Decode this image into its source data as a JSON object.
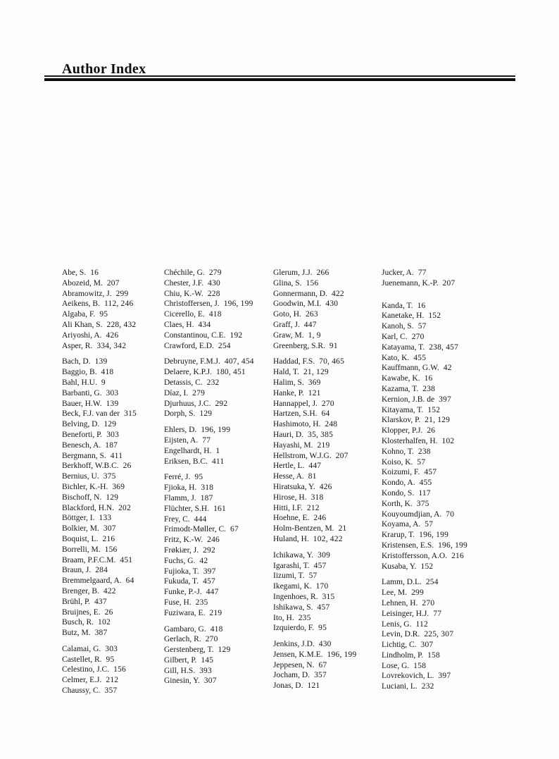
{
  "page": {
    "title": "Author Index"
  },
  "index": {
    "columns": [
      {
        "groups": [
          {
            "entries": [
              {
                "name": "Abe, S.",
                "pages": "16"
              },
              {
                "name": "Abozeid, M.",
                "pages": "207"
              },
              {
                "name": "Abramowitz, J.",
                "pages": "299"
              },
              {
                "name": "Aeikens, B.",
                "pages": "112, 246"
              },
              {
                "name": "Algaba, F.",
                "pages": "95"
              },
              {
                "name": "Ali Khan, S.",
                "pages": "228, 432"
              },
              {
                "name": "Ariyoshi, A.",
                "pages": "426"
              },
              {
                "name": "Asper, R.",
                "pages": "334, 342"
              }
            ]
          },
          {
            "entries": [
              {
                "name": "Bach, D.",
                "pages": "139"
              },
              {
                "name": "Baggio, B.",
                "pages": "418"
              },
              {
                "name": "Bahl, H.U.",
                "pages": "9"
              },
              {
                "name": "Barbanti, G.",
                "pages": "303"
              },
              {
                "name": "Bauer, H.W.",
                "pages": "139"
              },
              {
                "name": "Beck, F.J. van der",
                "pages": "315"
              },
              {
                "name": "Belving, D.",
                "pages": "129"
              },
              {
                "name": "Beneforti, P.",
                "pages": "303"
              },
              {
                "name": "Benesch, A.",
                "pages": "187"
              },
              {
                "name": "Bergmann, S.",
                "pages": "411"
              },
              {
                "name": "Berkhoff, W.B.C.",
                "pages": "26"
              },
              {
                "name": "Bernius, U.",
                "pages": "375"
              },
              {
                "name": "Bichler, K.-H.",
                "pages": "369"
              },
              {
                "name": "Bischoff, N.",
                "pages": "129"
              },
              {
                "name": "Blackford, H.N.",
                "pages": "202"
              },
              {
                "name": "Böttger, I.",
                "pages": "133"
              },
              {
                "name": "Bolkier, M.",
                "pages": "307"
              },
              {
                "name": "Boquist, L.",
                "pages": "216"
              },
              {
                "name": "Borrelli, M.",
                "pages": "156"
              },
              {
                "name": "Braam, P.F.C.M.",
                "pages": "451"
              },
              {
                "name": "Braun, J.",
                "pages": "284"
              },
              {
                "name": "Bremmelgaard, A.",
                "pages": "64"
              },
              {
                "name": "Brenger, B.",
                "pages": "422"
              },
              {
                "name": "Brühl, P.",
                "pages": "437"
              },
              {
                "name": "Bruijnes, E.",
                "pages": "26"
              },
              {
                "name": "Busch, R.",
                "pages": "102"
              },
              {
                "name": "Butz, M.",
                "pages": "387"
              }
            ]
          },
          {
            "entries": [
              {
                "name": "Calamai, G.",
                "pages": "303"
              },
              {
                "name": "Castellet, R.",
                "pages": "95"
              },
              {
                "name": "Celestino, J.C.",
                "pages": "156"
              },
              {
                "name": "Celmer, E.J.",
                "pages": "212"
              },
              {
                "name": "Chaussy, C.",
                "pages": "357"
              }
            ]
          }
        ]
      },
      {
        "groups": [
          {
            "entries": [
              {
                "name": "Chéchile, G.",
                "pages": "279"
              },
              {
                "name": "Chester, J.F.",
                "pages": "430"
              },
              {
                "name": "Chiu, K.-W.",
                "pages": "228"
              },
              {
                "name": "Christoffersen, J.",
                "pages": "196, 199"
              },
              {
                "name": "Cicerello, E.",
                "pages": "418"
              },
              {
                "name": "Claes, H.",
                "pages": "434"
              },
              {
                "name": "Constantinou, C.E.",
                "pages": "192"
              },
              {
                "name": "Crawford, E.D.",
                "pages": "254"
              }
            ]
          },
          {
            "entries": [
              {
                "name": "Debruyne, F.M.J.",
                "pages": "407, 454"
              },
              {
                "name": "Delaere, K.P.J.",
                "pages": "180, 451"
              },
              {
                "name": "Detassis, C.",
                "pages": "232"
              },
              {
                "name": "Díaz, I.",
                "pages": "279"
              },
              {
                "name": "Djurhuus, J.C.",
                "pages": "292"
              },
              {
                "name": "Dorph, S.",
                "pages": "129"
              }
            ]
          },
          {
            "entries": [
              {
                "name": "Ehlers, D.",
                "pages": "196, 199"
              },
              {
                "name": "Eijsten, A.",
                "pages": "77"
              },
              {
                "name": "Engelhardt, H.",
                "pages": "1"
              },
              {
                "name": "Eriksen, B.C.",
                "pages": "411"
              }
            ]
          },
          {
            "entries": [
              {
                "name": "Ferré, J.",
                "pages": "95"
              },
              {
                "name": "Fjioka, H.",
                "pages": "318"
              },
              {
                "name": "Flamm, J.",
                "pages": "187"
              },
              {
                "name": "Flüchter, S.H.",
                "pages": "161"
              },
              {
                "name": "Frey, C.",
                "pages": "444"
              },
              {
                "name": "Frimodt-Møller, C.",
                "pages": "67"
              },
              {
                "name": "Fritz, K.-W.",
                "pages": "246"
              },
              {
                "name": "Frøkiær, J.",
                "pages": "292"
              },
              {
                "name": "Fuchs, G.",
                "pages": "42"
              },
              {
                "name": "Fujioka, T.",
                "pages": "397"
              },
              {
                "name": "Fukuda, T.",
                "pages": "457"
              },
              {
                "name": "Funke, P.-J.",
                "pages": "447"
              },
              {
                "name": "Fuse, H.",
                "pages": "235"
              },
              {
                "name": "Fuziwara, E.",
                "pages": "219"
              }
            ]
          },
          {
            "entries": [
              {
                "name": "Gambaro, G.",
                "pages": "418"
              },
              {
                "name": "Gerlach, R.",
                "pages": "270"
              },
              {
                "name": "Gerstenberg, T.",
                "pages": "129"
              },
              {
                "name": "Gilbert, P.",
                "pages": "145"
              },
              {
                "name": "Gill, H.S.",
                "pages": "393"
              },
              {
                "name": "Ginesin, Y.",
                "pages": "307"
              }
            ]
          }
        ]
      },
      {
        "groups": [
          {
            "entries": [
              {
                "name": "Glerum, J.J.",
                "pages": "266"
              },
              {
                "name": "Glina, S.",
                "pages": "156"
              },
              {
                "name": "Gonnermann, D.",
                "pages": "422"
              },
              {
                "name": "Goodwin, M.I.",
                "pages": "430"
              },
              {
                "name": "Goto, H.",
                "pages": "263"
              },
              {
                "name": "Graff, J.",
                "pages": "447"
              },
              {
                "name": "Graw, M.",
                "pages": "1, 9"
              },
              {
                "name": "Greenberg, S.R.",
                "pages": "91"
              }
            ]
          },
          {
            "entries": [
              {
                "name": "Haddad, F.S.",
                "pages": "70, 465"
              },
              {
                "name": "Hald, T.",
                "pages": "21, 129"
              },
              {
                "name": "Halim, S.",
                "pages": "369"
              },
              {
                "name": "Hanke, P.",
                "pages": "121"
              },
              {
                "name": "Hannappel, J.",
                "pages": "270"
              },
              {
                "name": "Hartzen, S.H.",
                "pages": "64"
              },
              {
                "name": "Hashimoto, H.",
                "pages": "248"
              },
              {
                "name": "Hauri, D.",
                "pages": "35, 385"
              },
              {
                "name": "Hayashi, M.",
                "pages": "219"
              },
              {
                "name": "Hellstrom, W.J.G.",
                "pages": "207"
              },
              {
                "name": "Hertle, L.",
                "pages": "447"
              },
              {
                "name": "Hesse, A.",
                "pages": "81"
              },
              {
                "name": "Hiratsuka, Y.",
                "pages": "426"
              },
              {
                "name": "Hirose, H.",
                "pages": "318"
              },
              {
                "name": "Hitti, I.F.",
                "pages": "212"
              },
              {
                "name": "Hoehne, E.",
                "pages": "246"
              },
              {
                "name": "Holm-Bentzen, M.",
                "pages": "21"
              },
              {
                "name": "Huland, H.",
                "pages": "102, 422"
              }
            ]
          },
          {
            "entries": [
              {
                "name": "Ichikawa, Y.",
                "pages": "309"
              },
              {
                "name": "Igarashi, T.",
                "pages": "457"
              },
              {
                "name": "Iizumi, T.",
                "pages": "57"
              },
              {
                "name": "Ikegami, K.",
                "pages": "170"
              },
              {
                "name": "Ingenhoes, R.",
                "pages": "315"
              },
              {
                "name": "Ishikawa, S.",
                "pages": "457"
              },
              {
                "name": "Ito, H.",
                "pages": "235"
              },
              {
                "name": "Izquierdo, F.",
                "pages": "95"
              }
            ]
          },
          {
            "entries": [
              {
                "name": "Jenkins, J.D.",
                "pages": "430"
              },
              {
                "name": "Jensen, K.M.E.",
                "pages": "196, 199"
              },
              {
                "name": "Jeppesen, N.",
                "pages": "67"
              },
              {
                "name": "Jocham, D.",
                "pages": "357"
              },
              {
                "name": "Jonas, D.",
                "pages": "121"
              }
            ]
          }
        ]
      },
      {
        "groups": [
          {
            "entries": [
              {
                "name": "Jucker, A.",
                "pages": "77"
              },
              {
                "name": "Juenemann, K.-P.",
                "pages": "207"
              }
            ]
          },
          {
            "extra_gap": true,
            "entries": [
              {
                "name": "Kanda, T.",
                "pages": "16"
              },
              {
                "name": "Kanetake, H.",
                "pages": "152"
              },
              {
                "name": "Kanoh, S.",
                "pages": "57"
              },
              {
                "name": "Karl, C.",
                "pages": "270"
              },
              {
                "name": "Katayama, T.",
                "pages": "238, 457"
              },
              {
                "name": "Kato, K.",
                "pages": "455"
              },
              {
                "name": "Kauffmann, G.W.",
                "pages": "42"
              },
              {
                "name": "Kawabe, K.",
                "pages": "16"
              },
              {
                "name": "Kazama, T.",
                "pages": "238"
              },
              {
                "name": "Kernion, J.B. de",
                "pages": "397"
              },
              {
                "name": "Kitayama, T.",
                "pages": "152"
              },
              {
                "name": "Klarskov, P.",
                "pages": "21, 129"
              },
              {
                "name": "Klopper, P.J.",
                "pages": "26"
              },
              {
                "name": "Klosterhalfen, H.",
                "pages": "102"
              },
              {
                "name": "Kohno, T.",
                "pages": "238"
              },
              {
                "name": "Koiso, K.",
                "pages": "57"
              },
              {
                "name": "Koizumi, F.",
                "pages": "457"
              },
              {
                "name": "Kondo, A.",
                "pages": "455"
              },
              {
                "name": "Kondo, S.",
                "pages": "117"
              },
              {
                "name": "Korth, K.",
                "pages": "375"
              },
              {
                "name": "Kouyoumdjian, A.",
                "pages": "70"
              },
              {
                "name": "Koyama, A.",
                "pages": "57"
              },
              {
                "name": "Krarup, T.",
                "pages": "196, 199"
              },
              {
                "name": "Kristensen, E.S.",
                "pages": "196, 199"
              },
              {
                "name": "Kristoffersson, A.O.",
                "pages": "216"
              },
              {
                "name": "Kusaba, Y.",
                "pages": "152"
              }
            ]
          },
          {
            "entries": [
              {
                "name": "Lamm, D.L.",
                "pages": "254"
              },
              {
                "name": "Lee, M.",
                "pages": "299"
              },
              {
                "name": "Lehnen, H.",
                "pages": "270"
              },
              {
                "name": "Leisinger, H.J.",
                "pages": "77"
              },
              {
                "name": "Lenis, G.",
                "pages": "112"
              },
              {
                "name": "Levin, D.R.",
                "pages": "225, 307"
              },
              {
                "name": "Lichtig, C.",
                "pages": "307"
              },
              {
                "name": "Lindholm, P.",
                "pages": "158"
              },
              {
                "name": "Lose, G.",
                "pages": "158"
              },
              {
                "name": "Lovrekovich, L.",
                "pages": "397"
              },
              {
                "name": "Luciani, L.",
                "pages": "232"
              }
            ]
          }
        ]
      }
    ]
  }
}
